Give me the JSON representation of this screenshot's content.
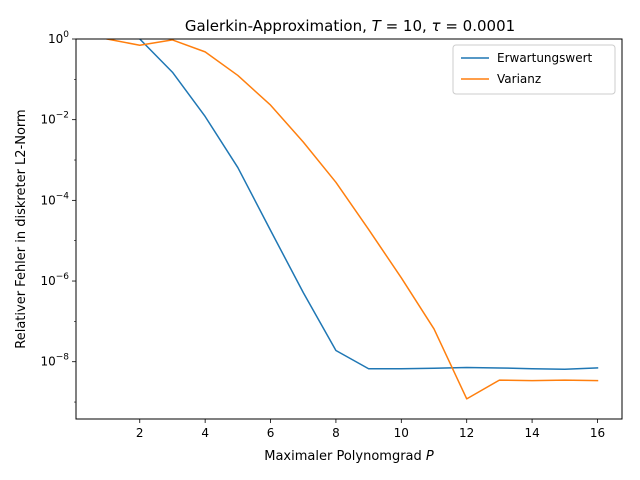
{
  "chart_data": {
    "type": "line",
    "title": "Galerkin-Approximation, T = 10, τ = 0.0001",
    "title_parts": {
      "prefix": "Galerkin-Approximation, ",
      "T_var": "T",
      "T_eq": " = 10, ",
      "tau_var": "τ",
      "tau_eq": " = 0.0001"
    },
    "xlabel": "Maximaler Polynomgrad",
    "xlabel_var": "P",
    "ylabel": "Relativer Fehler in diskreter L2-Norm",
    "xlim": [
      0.05,
      16.75
    ],
    "ylim": [
      3.8e-10,
      1
    ],
    "yscale": "log",
    "x_ticks": [
      2,
      4,
      6,
      8,
      10,
      12,
      14,
      16
    ],
    "x_tick_labels": [
      "2",
      "4",
      "6",
      "8",
      "10",
      "12",
      "14",
      "16"
    ],
    "y_ticks": [
      {
        "base": "10",
        "exp": "0",
        "value": 1
      },
      {
        "base": "10",
        "exp": "−2",
        "value": 0.01
      },
      {
        "base": "10",
        "exp": "−4",
        "value": 0.0001
      },
      {
        "base": "10",
        "exp": "−6",
        "value": 1e-06
      },
      {
        "base": "10",
        "exp": "−8",
        "value": 1e-08
      }
    ],
    "grid": false,
    "legend_position": "top-right",
    "series": [
      {
        "name": "Erwartungswert",
        "color": "#1f77b4",
        "x": [
          1,
          2,
          3,
          4,
          5,
          6,
          7,
          8,
          9,
          10,
          11,
          12,
          13,
          14,
          15,
          16
        ],
        "y": [
          3.0,
          1.0,
          0.15,
          0.012,
          0.00065,
          1.8e-05,
          5.2e-07,
          1.9e-08,
          6.7e-09,
          6.7e-09,
          6.9e-09,
          7.2e-09,
          7e-09,
          6.7e-09,
          6.5e-09,
          7e-09
        ]
      },
      {
        "name": "Varianz",
        "color": "#ff7f0e",
        "x": [
          1,
          2,
          3,
          4,
          5,
          6,
          7,
          8,
          9,
          10,
          11,
          12,
          13,
          14,
          15,
          16
        ],
        "y": [
          1.0,
          0.7,
          0.95,
          0.48,
          0.125,
          0.023,
          0.0028,
          0.00028,
          1.9e-05,
          1.2e-06,
          6.5e-08,
          1.2e-09,
          3.5e-09,
          3.4e-09,
          3.5e-09,
          3.4e-09
        ]
      }
    ]
  }
}
